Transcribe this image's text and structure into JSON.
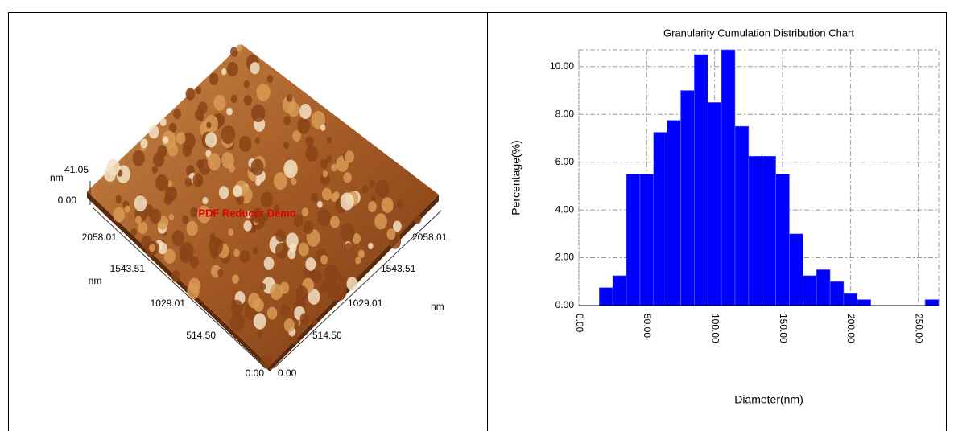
{
  "image_panel": {
    "z_unit": "nm",
    "z_max": "41.05",
    "z_min": "0.00",
    "left_axis_labels": [
      "2058.01",
      "1543.51",
      "1029.01",
      "514.50",
      "0.00"
    ],
    "left_axis_unit": "nm",
    "right_axis_labels": [
      "0.00",
      "514.50",
      "1029.01",
      "1543.51",
      "2058.01"
    ],
    "right_axis_unit": "nm",
    "watermark": "PDF Reducer Demo"
  },
  "chart_data": {
    "type": "histogram",
    "title": "Granularity Cumulation Distribution  Chart",
    "x_label": "Diameter(nm)",
    "y_label": "Percentage(%)",
    "color": "#0000ff",
    "bins": [
      15,
      25,
      35,
      45,
      55,
      65,
      75,
      85,
      95,
      105,
      115,
      125,
      135,
      145,
      155,
      165,
      175,
      185,
      195,
      205,
      215,
      225,
      235,
      245,
      255,
      265
    ],
    "values": [
      0.75,
      1.25,
      5.5,
      5.5,
      7.25,
      7.75,
      9.0,
      10.5,
      8.5,
      10.7,
      7.5,
      6.25,
      6.25,
      5.5,
      3.0,
      1.25,
      1.5,
      1.0,
      0.5,
      0.25,
      0,
      0,
      0,
      0,
      0.25
    ],
    "xlim": [
      0,
      265
    ],
    "ylim": [
      0,
      10.7
    ],
    "xticks": [
      {
        "value": 0,
        "label": "0.00"
      },
      {
        "value": 50,
        "label": "50.00"
      },
      {
        "value": 100,
        "label": "100.00"
      },
      {
        "value": 150,
        "label": "150.00"
      },
      {
        "value": 200,
        "label": "200.00"
      },
      {
        "value": 250,
        "label": "250.00"
      }
    ],
    "yticks": [
      {
        "value": 0,
        "label": "0.00"
      },
      {
        "value": 2,
        "label": "2.00"
      },
      {
        "value": 4,
        "label": "4.00"
      },
      {
        "value": 6,
        "label": "6.00"
      },
      {
        "value": 8,
        "label": "8.00"
      },
      {
        "value": 10,
        "label": "10.00"
      }
    ],
    "grid": true
  }
}
